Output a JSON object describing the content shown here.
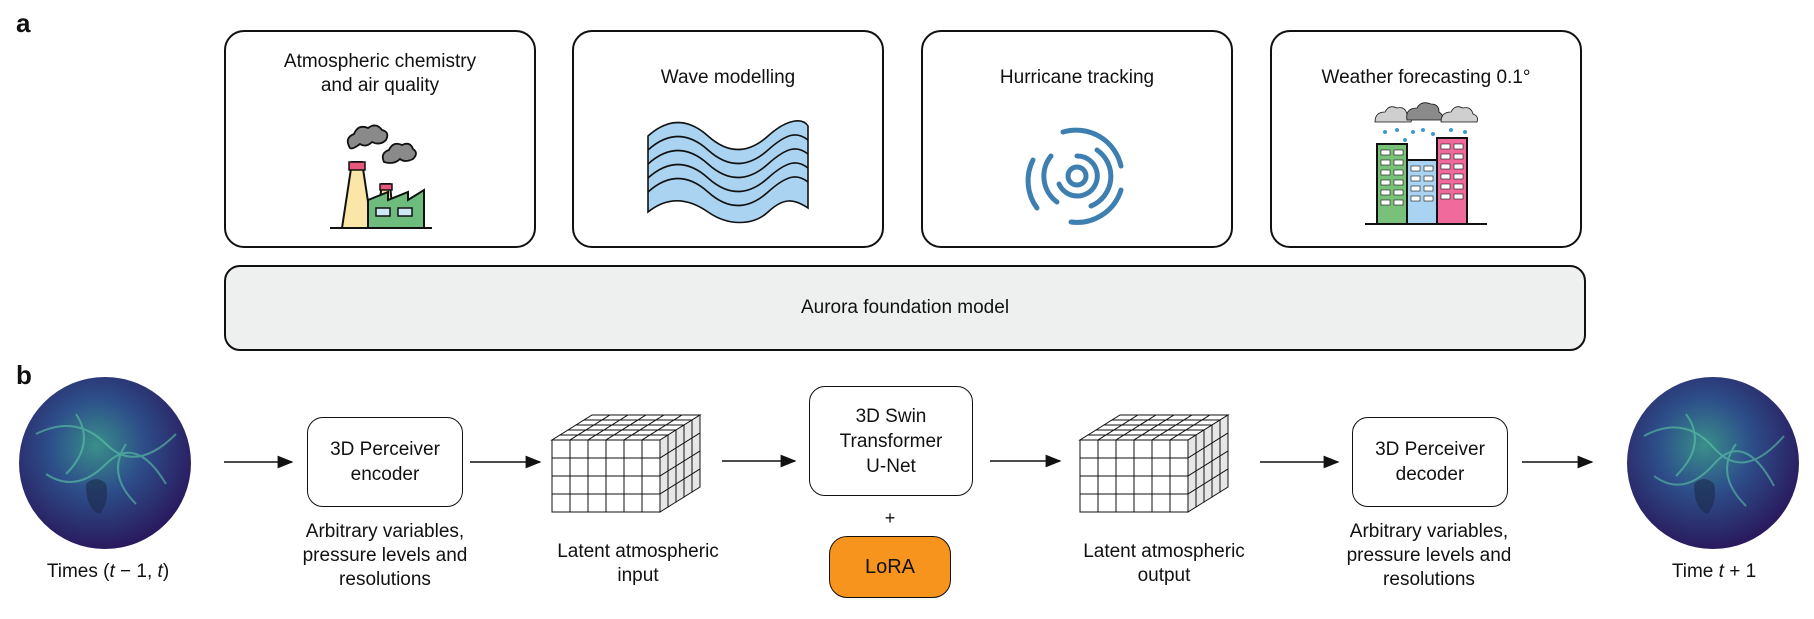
{
  "panels": {
    "a": "a",
    "b": "b"
  },
  "tasks": [
    {
      "title": "Atmospheric chemistry\nand air quality",
      "icon": "factory-icon"
    },
    {
      "title": "Wave modelling",
      "icon": "wave-icon"
    },
    {
      "title": "Hurricane tracking",
      "icon": "hurricane-icon"
    },
    {
      "title": "Weather forecasting 0.1°",
      "icon": "city-rain-icon"
    }
  ],
  "foundation_label": "Aurora foundation model",
  "pipeline": {
    "input_caption_pre": "Times (",
    "input_caption_var1": "t",
    "input_caption_mid": " − 1, ",
    "input_caption_var2": "t",
    "input_caption_post": ")",
    "encoder_label": "3D Perceiver\nencoder",
    "encoder_caption": "Arbitrary variables,\npressure levels and\nresolutions",
    "latent_input_caption": "Latent atmospheric\ninput",
    "backbone_label": "3D Swin\nTransformer\nU-Net",
    "plus": "+",
    "lora_label": "LoRA",
    "latent_output_caption": "Latent atmospheric\noutput",
    "decoder_label": "3D Perceiver\ndecoder",
    "decoder_caption": "Arbitrary variables,\npressure levels and\nresolutions",
    "output_caption_pre": "Time ",
    "output_caption_var": "t",
    "output_caption_post": " + 1"
  },
  "colors": {
    "lora": "#f7941d",
    "foundation_fill": "#eef0ef",
    "wave": "#a9d3f0",
    "hurricane": "#3d7fb0",
    "building_green": "#79c07a",
    "building_blue": "#a9d3f0",
    "building_pink": "#f06a9c",
    "factory_yellow": "#fbe6a8",
    "factory_green": "#6dbb7d"
  }
}
